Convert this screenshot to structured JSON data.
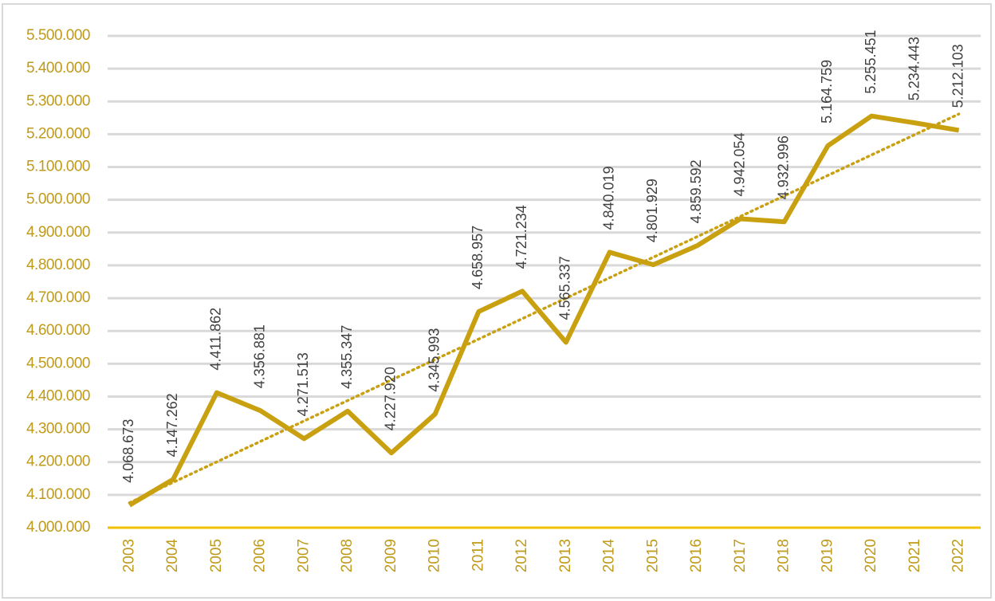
{
  "chart_data": {
    "type": "line",
    "categories": [
      "2003",
      "2004",
      "2005",
      "2006",
      "2007",
      "2008",
      "2009",
      "2010",
      "2011",
      "2012",
      "2013",
      "2014",
      "2015",
      "2016",
      "2017",
      "2018",
      "2019",
      "2020",
      "2021",
      "2022"
    ],
    "values": [
      4068673,
      4147262,
      4411862,
      4356881,
      4271513,
      4355347,
      4227920,
      4345993,
      4658957,
      4721234,
      4565337,
      4840019,
      4801929,
      4859592,
      4942054,
      4932996,
      5164759,
      5255451,
      5234443,
      5212103
    ],
    "value_labels": [
      "4.068.673",
      "4.147.262",
      "4.411.862",
      "4.356.881",
      "4.271.513",
      "4.355.347",
      "4.227.920",
      "4.345.993",
      "4.658.957",
      "4.721.234",
      "4.565.337",
      "4.840.019",
      "4.801.929",
      "4.859.592",
      "4.942.054",
      "4.932.996",
      "5.164.759",
      "5.255.451",
      "5.234.443",
      "5.212.103"
    ],
    "color": "#c9a010",
    "ylim": [
      4000000,
      5500000
    ],
    "yticks": [
      {
        "value": 4000000,
        "label": "4.000.000"
      },
      {
        "value": 4100000,
        "label": "4.100.000"
      },
      {
        "value": 4200000,
        "label": "4.200.000"
      },
      {
        "value": 4300000,
        "label": "4.300.000"
      },
      {
        "value": 4400000,
        "label": "4.400.000"
      },
      {
        "value": 4500000,
        "label": "4.500.000"
      },
      {
        "value": 4600000,
        "label": "4.600.000"
      },
      {
        "value": 4700000,
        "label": "4.700.000"
      },
      {
        "value": 4800000,
        "label": "4.800.000"
      },
      {
        "value": 4900000,
        "label": "4.900.000"
      },
      {
        "value": 5000000,
        "label": "5.000.000"
      },
      {
        "value": 5100000,
        "label": "5.100.000"
      },
      {
        "value": 5200000,
        "label": "5.200.000"
      },
      {
        "value": 5300000,
        "label": "5.300.000"
      },
      {
        "value": 5400000,
        "label": "5.400.000"
      },
      {
        "value": 5500000,
        "label": "5.500.000"
      }
    ],
    "grid": true,
    "trendline": true
  }
}
